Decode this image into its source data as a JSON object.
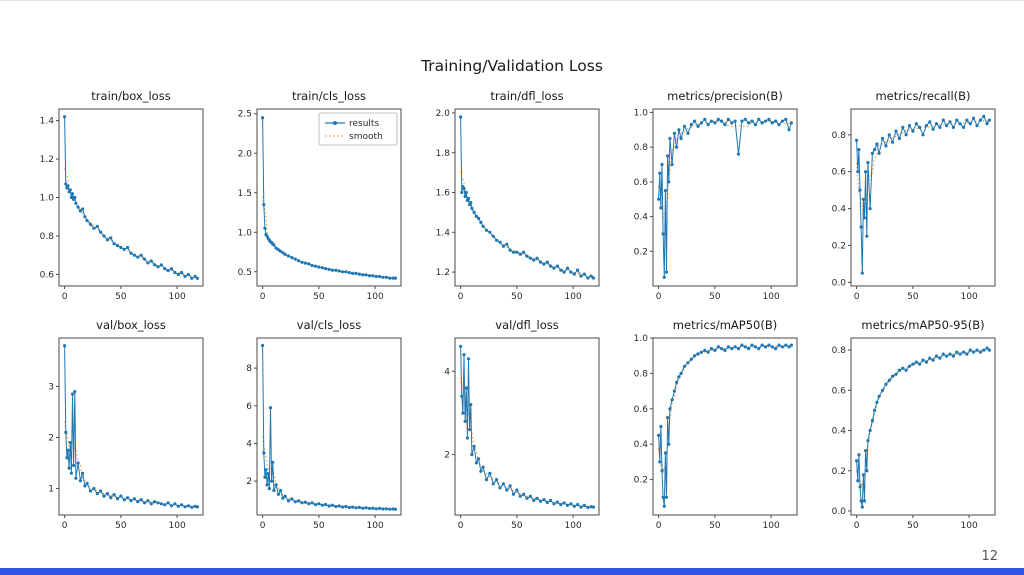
{
  "page": {
    "title": "Training/Validation Loss",
    "page_number": "12",
    "footer_bar_color": "#3056e3",
    "background": "#ffffff"
  },
  "legend": {
    "results": "results",
    "smooth": "smooth"
  },
  "colors": {
    "results_line": "#1f77b4",
    "smooth_line": "#e8a33d",
    "axis": "#4a4a4a",
    "tick_text": "#2a2a2a"
  },
  "epochs": [
    0,
    1,
    2,
    3,
    4,
    5,
    6,
    7,
    8,
    9,
    10,
    12,
    14,
    16,
    18,
    20,
    23,
    26,
    29,
    32,
    35,
    38,
    41,
    44,
    47,
    50,
    53,
    56,
    59,
    62,
    65,
    68,
    71,
    74,
    77,
    80,
    83,
    86,
    89,
    92,
    95,
    98,
    101,
    104,
    107,
    110,
    113,
    116,
    118
  ],
  "chart_data": [
    {
      "type": "line",
      "title": "train/box_loss",
      "series": [
        {
          "name": "results"
        },
        {
          "name": "smooth"
        }
      ],
      "y": [
        1.42,
        1.07,
        1.05,
        1.06,
        1.03,
        1.04,
        1.0,
        1.02,
        0.99,
        1.0,
        0.97,
        0.95,
        0.93,
        0.94,
        0.9,
        0.88,
        0.86,
        0.84,
        0.85,
        0.82,
        0.8,
        0.78,
        0.79,
        0.76,
        0.75,
        0.74,
        0.73,
        0.74,
        0.71,
        0.7,
        0.69,
        0.7,
        0.68,
        0.66,
        0.67,
        0.65,
        0.64,
        0.65,
        0.63,
        0.62,
        0.63,
        0.61,
        0.6,
        0.61,
        0.59,
        0.6,
        0.58,
        0.59,
        0.58
      ],
      "xlim": [
        -5,
        123
      ],
      "ylim": [
        0.54,
        1.46
      ],
      "xticks": [
        0,
        50,
        100
      ],
      "xtick_labels": [
        "0",
        "50",
        "100"
      ],
      "yticks": [
        0.6,
        0.8,
        1.0,
        1.2,
        1.4
      ],
      "ytick_labels": [
        "0.6",
        "0.8",
        "1.0",
        "1.2",
        "1.4"
      ],
      "legend": false
    },
    {
      "type": "line",
      "title": "train/cls_loss",
      "series": [
        {
          "name": "results"
        },
        {
          "name": "smooth"
        }
      ],
      "y": [
        2.45,
        1.35,
        1.05,
        0.97,
        0.95,
        0.92,
        0.9,
        0.88,
        0.87,
        0.85,
        0.84,
        0.8,
        0.78,
        0.76,
        0.74,
        0.72,
        0.7,
        0.68,
        0.66,
        0.64,
        0.62,
        0.61,
        0.6,
        0.58,
        0.57,
        0.56,
        0.55,
        0.54,
        0.53,
        0.52,
        0.52,
        0.51,
        0.5,
        0.5,
        0.49,
        0.48,
        0.48,
        0.47,
        0.46,
        0.46,
        0.45,
        0.45,
        0.44,
        0.44,
        0.43,
        0.43,
        0.42,
        0.42,
        0.42
      ],
      "xlim": [
        -5,
        123
      ],
      "ylim": [
        0.32,
        2.56
      ],
      "xticks": [
        0,
        50,
        100
      ],
      "xtick_labels": [
        "0",
        "50",
        "100"
      ],
      "yticks": [
        0.5,
        1.0,
        1.5,
        2.0,
        2.5
      ],
      "ytick_labels": [
        "0.5",
        "1.0",
        "1.5",
        "2.0",
        "2.5"
      ],
      "legend": true
    },
    {
      "type": "line",
      "title": "train/dfl_loss",
      "series": [
        {
          "name": "results"
        },
        {
          "name": "smooth"
        }
      ],
      "y": [
        1.98,
        1.6,
        1.63,
        1.62,
        1.58,
        1.6,
        1.56,
        1.57,
        1.54,
        1.55,
        1.52,
        1.5,
        1.48,
        1.47,
        1.45,
        1.43,
        1.41,
        1.4,
        1.38,
        1.36,
        1.35,
        1.33,
        1.34,
        1.31,
        1.3,
        1.3,
        1.29,
        1.3,
        1.28,
        1.27,
        1.26,
        1.27,
        1.25,
        1.24,
        1.25,
        1.23,
        1.22,
        1.23,
        1.21,
        1.2,
        1.22,
        1.2,
        1.19,
        1.21,
        1.18,
        1.19,
        1.17,
        1.18,
        1.17
      ],
      "xlim": [
        -5,
        123
      ],
      "ylim": [
        1.13,
        2.02
      ],
      "xticks": [
        0,
        50,
        100
      ],
      "xtick_labels": [
        "0",
        "50",
        "100"
      ],
      "yticks": [
        1.2,
        1.4,
        1.6,
        1.8,
        2.0
      ],
      "ytick_labels": [
        "1.2",
        "1.4",
        "1.6",
        "1.8",
        "2.0"
      ],
      "legend": false
    },
    {
      "type": "line",
      "title": "metrics/precision(B)",
      "series": [
        {
          "name": "results"
        },
        {
          "name": "smooth"
        }
      ],
      "y": [
        0.5,
        0.65,
        0.45,
        0.7,
        0.3,
        0.05,
        0.55,
        0.08,
        0.75,
        0.6,
        0.85,
        0.7,
        0.88,
        0.8,
        0.9,
        0.85,
        0.92,
        0.88,
        0.93,
        0.95,
        0.92,
        0.94,
        0.96,
        0.93,
        0.95,
        0.94,
        0.96,
        0.95,
        0.93,
        0.96,
        0.94,
        0.95,
        0.76,
        0.95,
        0.96,
        0.94,
        0.95,
        0.93,
        0.96,
        0.94,
        0.95,
        0.96,
        0.94,
        0.95,
        0.93,
        0.95,
        0.96,
        0.9,
        0.94
      ],
      "xlim": [
        -5,
        123
      ],
      "ylim": [
        0.0,
        1.02
      ],
      "xticks": [
        0,
        50,
        100
      ],
      "xtick_labels": [
        "0",
        "50",
        "100"
      ],
      "yticks": [
        0.2,
        0.4,
        0.6,
        0.8,
        1.0
      ],
      "ytick_labels": [
        "0.2",
        "0.4",
        "0.6",
        "0.8",
        "1.0"
      ],
      "legend": false
    },
    {
      "type": "line",
      "title": "metrics/recall(B)",
      "series": [
        {
          "name": "results"
        },
        {
          "name": "smooth"
        }
      ],
      "y": [
        0.77,
        0.6,
        0.72,
        0.5,
        0.3,
        0.05,
        0.45,
        0.35,
        0.6,
        0.25,
        0.65,
        0.4,
        0.7,
        0.72,
        0.75,
        0.7,
        0.78,
        0.74,
        0.8,
        0.76,
        0.82,
        0.78,
        0.84,
        0.8,
        0.85,
        0.82,
        0.86,
        0.84,
        0.8,
        0.85,
        0.87,
        0.83,
        0.86,
        0.84,
        0.88,
        0.85,
        0.87,
        0.84,
        0.88,
        0.86,
        0.84,
        0.88,
        0.86,
        0.89,
        0.85,
        0.88,
        0.9,
        0.86,
        0.88
      ],
      "xlim": [
        -5,
        123
      ],
      "ylim": [
        -0.02,
        0.94
      ],
      "xticks": [
        0,
        50,
        100
      ],
      "xtick_labels": [
        "0",
        "50",
        "100"
      ],
      "yticks": [
        0.0,
        0.2,
        0.4,
        0.6,
        0.8
      ],
      "ytick_labels": [
        "0.0",
        "0.2",
        "0.4",
        "0.6",
        "0.8"
      ],
      "legend": false
    },
    {
      "type": "line",
      "title": "val/box_loss",
      "series": [
        {
          "name": "results"
        },
        {
          "name": "smooth"
        }
      ],
      "y": [
        3.8,
        2.1,
        1.6,
        1.75,
        1.4,
        1.9,
        1.3,
        2.85,
        1.45,
        2.9,
        1.2,
        1.5,
        1.15,
        1.3,
        1.05,
        1.1,
        0.95,
        1.0,
        0.9,
        0.95,
        0.85,
        0.9,
        0.82,
        0.88,
        0.8,
        0.85,
        0.78,
        0.82,
        0.76,
        0.8,
        0.74,
        0.78,
        0.72,
        0.76,
        0.7,
        0.74,
        0.72,
        0.7,
        0.68,
        0.72,
        0.66,
        0.7,
        0.65,
        0.68,
        0.64,
        0.66,
        0.63,
        0.65,
        0.64
      ],
      "xlim": [
        -5,
        123
      ],
      "ylim": [
        0.48,
        3.95
      ],
      "xticks": [
        0,
        50,
        100
      ],
      "xtick_labels": [
        "0",
        "50",
        "100"
      ],
      "yticks": [
        1,
        2,
        3
      ],
      "ytick_labels": [
        "1",
        "2",
        "3"
      ],
      "legend": false
    },
    {
      "type": "line",
      "title": "val/cls_loss",
      "series": [
        {
          "name": "results"
        },
        {
          "name": "smooth"
        }
      ],
      "y": [
        9.2,
        3.5,
        2.2,
        2.6,
        1.8,
        2.4,
        1.6,
        5.9,
        2.0,
        3.0,
        1.5,
        1.8,
        1.3,
        1.5,
        1.1,
        1.2,
        0.95,
        1.05,
        0.9,
        0.95,
        0.85,
        0.88,
        0.8,
        0.84,
        0.75,
        0.8,
        0.72,
        0.76,
        0.68,
        0.72,
        0.65,
        0.68,
        0.62,
        0.65,
        0.6,
        0.62,
        0.58,
        0.6,
        0.56,
        0.58,
        0.55,
        0.56,
        0.53,
        0.55,
        0.52,
        0.53,
        0.51,
        0.52,
        0.51
      ],
      "xlim": [
        -5,
        123
      ],
      "ylim": [
        0.2,
        9.6
      ],
      "xticks": [
        0,
        50,
        100
      ],
      "xtick_labels": [
        "0",
        "50",
        "100"
      ],
      "yticks": [
        2,
        4,
        6,
        8
      ],
      "ytick_labels": [
        "2",
        "4",
        "6",
        "8"
      ],
      "legend": false
    },
    {
      "type": "line",
      "title": "val/dfl_loss",
      "series": [
        {
          "name": "results"
        },
        {
          "name": "smooth"
        }
      ],
      "y": [
        4.6,
        3.4,
        3.0,
        4.4,
        2.8,
        3.6,
        2.4,
        4.3,
        2.6,
        3.2,
        2.0,
        2.2,
        1.8,
        1.9,
        1.6,
        1.7,
        1.4,
        1.55,
        1.3,
        1.4,
        1.2,
        1.3,
        1.15,
        1.25,
        1.05,
        1.15,
        1.0,
        1.05,
        0.95,
        1.0,
        0.9,
        0.95,
        0.88,
        0.92,
        0.85,
        0.9,
        0.82,
        0.86,
        0.8,
        0.84,
        0.78,
        0.82,
        0.76,
        0.8,
        0.74,
        0.78,
        0.73,
        0.75,
        0.74
      ],
      "xlim": [
        -5,
        123
      ],
      "ylim": [
        0.55,
        4.8
      ],
      "xticks": [
        0,
        50,
        100
      ],
      "xtick_labels": [
        "0",
        "50",
        "100"
      ],
      "yticks": [
        2,
        4
      ],
      "ytick_labels": [
        "2",
        "4"
      ],
      "legend": false
    },
    {
      "type": "line",
      "title": "metrics/mAP50(B)",
      "series": [
        {
          "name": "results"
        },
        {
          "name": "smooth"
        }
      ],
      "y": [
        0.45,
        0.3,
        0.5,
        0.25,
        0.1,
        0.05,
        0.35,
        0.1,
        0.55,
        0.4,
        0.6,
        0.65,
        0.7,
        0.75,
        0.78,
        0.8,
        0.84,
        0.86,
        0.88,
        0.9,
        0.91,
        0.92,
        0.93,
        0.92,
        0.94,
        0.93,
        0.95,
        0.94,
        0.93,
        0.95,
        0.94,
        0.95,
        0.94,
        0.96,
        0.95,
        0.94,
        0.96,
        0.95,
        0.94,
        0.96,
        0.95,
        0.96,
        0.95,
        0.94,
        0.96,
        0.95,
        0.96,
        0.95,
        0.96
      ],
      "xlim": [
        -5,
        123
      ],
      "ylim": [
        0.0,
        1.0
      ],
      "xticks": [
        0,
        50,
        100
      ],
      "xtick_labels": [
        "0",
        "50",
        "100"
      ],
      "yticks": [
        0.2,
        0.4,
        0.6,
        0.8,
        1.0
      ],
      "ytick_labels": [
        "0.2",
        "0.4",
        "0.6",
        "0.8",
        "1.0"
      ],
      "legend": false
    },
    {
      "type": "line",
      "title": "metrics/mAP50-95(B)",
      "series": [
        {
          "name": "results"
        },
        {
          "name": "smooth"
        }
      ],
      "y": [
        0.25,
        0.15,
        0.28,
        0.12,
        0.05,
        0.02,
        0.18,
        0.05,
        0.3,
        0.2,
        0.35,
        0.4,
        0.45,
        0.5,
        0.54,
        0.57,
        0.6,
        0.63,
        0.65,
        0.67,
        0.68,
        0.7,
        0.71,
        0.7,
        0.72,
        0.73,
        0.74,
        0.73,
        0.75,
        0.74,
        0.76,
        0.75,
        0.77,
        0.76,
        0.78,
        0.77,
        0.78,
        0.77,
        0.79,
        0.78,
        0.79,
        0.78,
        0.8,
        0.79,
        0.8,
        0.79,
        0.8,
        0.81,
        0.8
      ],
      "xlim": [
        -5,
        123
      ],
      "ylim": [
        -0.02,
        0.86
      ],
      "xticks": [
        0,
        50,
        100
      ],
      "xtick_labels": [
        "0",
        "50",
        "100"
      ],
      "yticks": [
        0.0,
        0.2,
        0.4,
        0.6,
        0.8
      ],
      "ytick_labels": [
        "0.0",
        "0.2",
        "0.4",
        "0.6",
        "0.8"
      ],
      "legend": false
    }
  ]
}
